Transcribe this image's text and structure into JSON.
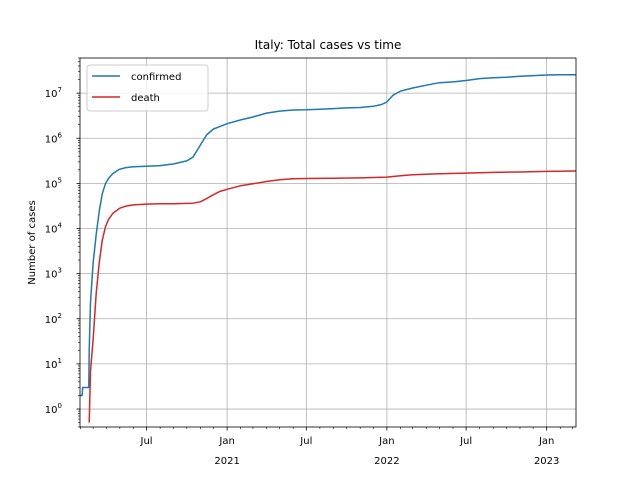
{
  "chart_data": {
    "type": "line",
    "title": "Italy: Total cases vs time",
    "xlabel": "",
    "ylabel": "Number of cases",
    "yscale": "log",
    "ylim": [
      0.4,
      60000000
    ],
    "xlim": [
      "2020-01-31",
      "2023-03-09"
    ],
    "grid": true,
    "legend_position": "top-left",
    "x_ticks": [
      {
        "date": "2020-07-01",
        "label": "Jul",
        "year": ""
      },
      {
        "date": "2021-01-01",
        "label": "Jan",
        "year": "2021"
      },
      {
        "date": "2021-07-01",
        "label": "Jul",
        "year": ""
      },
      {
        "date": "2022-01-01",
        "label": "Jan",
        "year": "2022"
      },
      {
        "date": "2022-07-01",
        "label": "Jul",
        "year": ""
      },
      {
        "date": "2023-01-01",
        "label": "Jan",
        "year": "2023"
      }
    ],
    "y_ticks": [
      {
        "value": 1,
        "base": "10",
        "exp": "0"
      },
      {
        "value": 10,
        "base": "10",
        "exp": "1"
      },
      {
        "value": 100,
        "base": "10",
        "exp": "2"
      },
      {
        "value": 1000,
        "base": "10",
        "exp": "3"
      },
      {
        "value": 10000,
        "base": "10",
        "exp": "4"
      },
      {
        "value": 100000,
        "base": "10",
        "exp": "5"
      },
      {
        "value": 1000000,
        "base": "10",
        "exp": "6"
      },
      {
        "value": 10000000,
        "base": "10",
        "exp": "7"
      }
    ],
    "series": [
      {
        "name": "confirmed",
        "color": "#1f77b4",
        "points": [
          [
            "2020-01-31",
            2
          ],
          [
            "2020-02-05",
            2
          ],
          [
            "2020-02-06",
            3
          ],
          [
            "2020-02-20",
            3
          ],
          [
            "2020-02-21",
            20
          ],
          [
            "2020-02-24",
            229
          ],
          [
            "2020-03-01",
            1700
          ],
          [
            "2020-03-08",
            7400
          ],
          [
            "2020-03-15",
            24700
          ],
          [
            "2020-03-22",
            59000
          ],
          [
            "2020-03-29",
            97700
          ],
          [
            "2020-04-05",
            128900
          ],
          [
            "2020-04-15",
            165000
          ],
          [
            "2020-04-30",
            205000
          ],
          [
            "2020-05-15",
            224000
          ],
          [
            "2020-06-01",
            233000
          ],
          [
            "2020-07-01",
            240000
          ],
          [
            "2020-08-01",
            248000
          ],
          [
            "2020-09-01",
            270000
          ],
          [
            "2020-10-01",
            315000
          ],
          [
            "2020-10-15",
            380000
          ],
          [
            "2020-11-01",
            710000
          ],
          [
            "2020-11-15",
            1180000
          ],
          [
            "2020-12-01",
            1600000
          ],
          [
            "2021-01-01",
            2100000
          ],
          [
            "2021-02-01",
            2550000
          ],
          [
            "2021-03-01",
            2950000
          ],
          [
            "2021-04-01",
            3600000
          ],
          [
            "2021-05-01",
            4000000
          ],
          [
            "2021-06-01",
            4230000
          ],
          [
            "2021-07-01",
            4270000
          ],
          [
            "2021-08-01",
            4400000
          ],
          [
            "2021-09-01",
            4550000
          ],
          [
            "2021-10-01",
            4700000
          ],
          [
            "2021-11-01",
            4800000
          ],
          [
            "2021-12-01",
            5100000
          ],
          [
            "2021-12-20",
            5600000
          ],
          [
            "2022-01-01",
            6400000
          ],
          [
            "2022-01-15",
            9000000
          ],
          [
            "2022-02-01",
            11100000
          ],
          [
            "2022-03-01",
            13000000
          ],
          [
            "2022-04-01",
            15000000
          ],
          [
            "2022-05-01",
            17000000
          ],
          [
            "2022-06-01",
            17700000
          ],
          [
            "2022-07-01",
            19000000
          ],
          [
            "2022-08-01",
            21000000
          ],
          [
            "2022-09-01",
            21900000
          ],
          [
            "2022-10-01",
            22500000
          ],
          [
            "2022-11-01",
            23700000
          ],
          [
            "2022-12-01",
            24500000
          ],
          [
            "2023-01-01",
            25200000
          ],
          [
            "2023-02-01",
            25500000
          ],
          [
            "2023-03-09",
            25600000
          ]
        ]
      },
      {
        "name": "death",
        "color": "#d62728",
        "points": [
          [
            "2020-02-21",
            0.5
          ],
          [
            "2020-02-24",
            7
          ],
          [
            "2020-03-01",
            34
          ],
          [
            "2020-03-08",
            366
          ],
          [
            "2020-03-15",
            1800
          ],
          [
            "2020-03-22",
            5500
          ],
          [
            "2020-03-29",
            10800
          ],
          [
            "2020-04-05",
            15900
          ],
          [
            "2020-04-15",
            21600
          ],
          [
            "2020-05-01",
            28200
          ],
          [
            "2020-05-15",
            31400
          ],
          [
            "2020-06-01",
            33400
          ],
          [
            "2020-07-01",
            34800
          ],
          [
            "2020-08-01",
            35200
          ],
          [
            "2020-09-01",
            35500
          ],
          [
            "2020-10-01",
            36000
          ],
          [
            "2020-10-15",
            36400
          ],
          [
            "2020-11-01",
            39000
          ],
          [
            "2020-11-15",
            46000
          ],
          [
            "2020-12-01",
            56000
          ],
          [
            "2020-12-15",
            66000
          ],
          [
            "2021-01-01",
            74000
          ],
          [
            "2021-02-01",
            89000
          ],
          [
            "2021-03-01",
            98000
          ],
          [
            "2021-04-01",
            110000
          ],
          [
            "2021-05-01",
            120000
          ],
          [
            "2021-06-01",
            127000
          ],
          [
            "2021-07-01",
            128000
          ],
          [
            "2021-09-01",
            129500
          ],
          [
            "2021-11-01",
            132000
          ],
          [
            "2022-01-01",
            138000
          ],
          [
            "2022-02-01",
            148000
          ],
          [
            "2022-03-01",
            155000
          ],
          [
            "2022-05-01",
            164000
          ],
          [
            "2022-07-01",
            169000
          ],
          [
            "2022-09-01",
            175000
          ],
          [
            "2022-11-01",
            179000
          ],
          [
            "2023-01-01",
            184000
          ],
          [
            "2023-03-09",
            188000
          ]
        ]
      }
    ]
  }
}
